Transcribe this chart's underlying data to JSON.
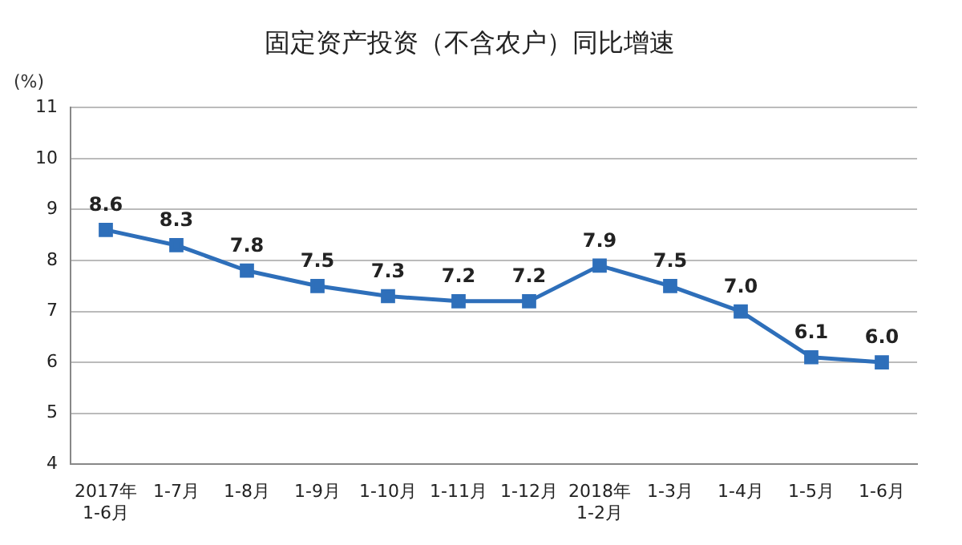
{
  "chart_data": {
    "type": "line",
    "title": "固定资产投资（不含农户）同比增速",
    "ylabel": "(%)",
    "categories": [
      "2017年\n1-6月",
      "1-7月",
      "1-8月",
      "1-9月",
      "1-10月",
      "1-11月",
      "1-12月",
      "2018年\n1-2月",
      "1-3月",
      "1-4月",
      "1-5月",
      "1-6月"
    ],
    "series": [
      {
        "color": "#2e6fba",
        "values": [
          8.6,
          8.3,
          7.8,
          7.5,
          7.3,
          7.2,
          7.2,
          7.9,
          7.5,
          7.0,
          6.1,
          6.0
        ]
      }
    ],
    "value_labels": [
      "8.6",
      "8.3",
      "7.8",
      "7.5",
      "7.3",
      "7.2",
      "7.2",
      "7.9",
      "7.5",
      "7.0",
      "6.1",
      "6.0"
    ],
    "ylim": [
      4,
      11
    ],
    "yticks": [
      4,
      5,
      6,
      7,
      8,
      9,
      10,
      11
    ],
    "grid": "y",
    "legend": false,
    "marker": "square",
    "line_style": "solid"
  }
}
